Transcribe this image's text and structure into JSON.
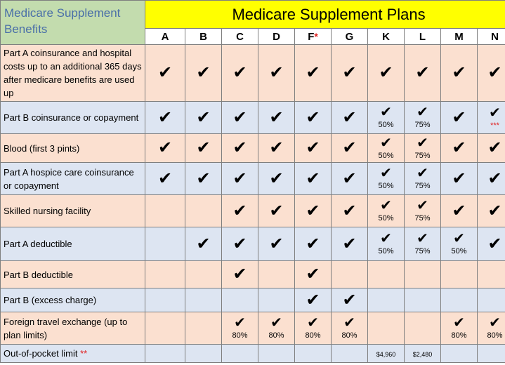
{
  "header": {
    "benefits": "Medicare Supplement Benefits",
    "title": "Medicare Supplement Plans",
    "plans": [
      "A",
      "B",
      "C",
      "D",
      "F",
      "G",
      "K",
      "L",
      "M",
      "N"
    ],
    "plan_star_index": 4,
    "plan_star": "*"
  },
  "check": "✔",
  "rows": [
    {
      "label": "Part A coinsurance and hospital costs up to an additional 365 days after medicare benefits are used up",
      "cells": [
        {
          "check": true
        },
        {
          "check": true
        },
        {
          "check": true
        },
        {
          "check": true
        },
        {
          "check": true
        },
        {
          "check": true
        },
        {
          "check": true
        },
        {
          "check": true
        },
        {
          "check": true
        },
        {
          "check": true
        }
      ]
    },
    {
      "label": "Part B coinsurance or copayment",
      "cells": [
        {
          "check": true
        },
        {
          "check": true
        },
        {
          "check": true
        },
        {
          "check": true
        },
        {
          "check": true
        },
        {
          "check": true
        },
        {
          "check": true,
          "note": "50%"
        },
        {
          "check": true,
          "note": "75%"
        },
        {
          "check": true
        },
        {
          "check": true,
          "star": "***"
        }
      ]
    },
    {
      "label": "Blood (first 3 pints)",
      "cells": [
        {
          "check": true
        },
        {
          "check": true
        },
        {
          "check": true
        },
        {
          "check": true
        },
        {
          "check": true
        },
        {
          "check": true
        },
        {
          "check": true,
          "note": "50%"
        },
        {
          "check": true,
          "note": "75%"
        },
        {
          "check": true
        },
        {
          "check": true
        }
      ]
    },
    {
      "label": "Part A hospice care coinsurance or copayment",
      "cells": [
        {
          "check": true
        },
        {
          "check": true
        },
        {
          "check": true
        },
        {
          "check": true
        },
        {
          "check": true
        },
        {
          "check": true
        },
        {
          "check": true,
          "note": "50%"
        },
        {
          "check": true,
          "note": "75%"
        },
        {
          "check": true
        },
        {
          "check": true
        }
      ]
    },
    {
      "label": "Skilled nursing facility",
      "cells": [
        {},
        {},
        {
          "check": true
        },
        {
          "check": true
        },
        {
          "check": true
        },
        {
          "check": true
        },
        {
          "check": true,
          "note": "50%"
        },
        {
          "check": true,
          "note": "75%"
        },
        {
          "check": true
        },
        {
          "check": true
        }
      ]
    },
    {
      "label": "Part A deductible",
      "cells": [
        {},
        {
          "check": true
        },
        {
          "check": true
        },
        {
          "check": true
        },
        {
          "check": true
        },
        {
          "check": true
        },
        {
          "check": true,
          "note": "50%"
        },
        {
          "check": true,
          "note": "75%"
        },
        {
          "check": true,
          "note": "50%"
        },
        {
          "check": true
        }
      ]
    },
    {
      "label": "Part B deductible",
      "cells": [
        {},
        {},
        {
          "check": true
        },
        {},
        {
          "check": true
        },
        {},
        {},
        {},
        {},
        {}
      ]
    },
    {
      "label": "Part B (excess charge)",
      "cells": [
        {},
        {},
        {},
        {},
        {
          "check": true
        },
        {
          "check": true
        },
        {},
        {},
        {},
        {}
      ]
    },
    {
      "label": "Foreign travel exchange (up to plan limits)",
      "cells": [
        {},
        {},
        {
          "check": true,
          "note": "80%"
        },
        {
          "check": true,
          "note": "80%"
        },
        {
          "check": true,
          "note": "80%"
        },
        {
          "check": true,
          "note": "80%"
        },
        {},
        {},
        {
          "check": true,
          "note": "80%"
        },
        {
          "check": true,
          "note": "80%"
        }
      ]
    },
    {
      "label": "Out-of-pocket limit",
      "label_star": "**",
      "cells": [
        {},
        {},
        {},
        {},
        {},
        {},
        {
          "money": "$4,960"
        },
        {
          "money": "$2,480"
        },
        {},
        {}
      ]
    }
  ]
}
